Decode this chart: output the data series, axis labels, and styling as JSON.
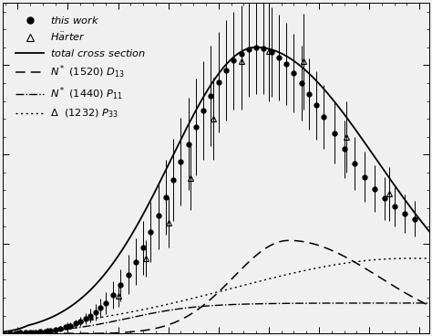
{
  "background_color": "#f0f0f0",
  "this_work_x": [
    0.285,
    0.295,
    0.305,
    0.315,
    0.325,
    0.335,
    0.345,
    0.355,
    0.365,
    0.375,
    0.385,
    0.395,
    0.405,
    0.415,
    0.425,
    0.435,
    0.445,
    0.455,
    0.465,
    0.475,
    0.49,
    0.505,
    0.52,
    0.535,
    0.55,
    0.565,
    0.58,
    0.595,
    0.61,
    0.625,
    0.64,
    0.655,
    0.67,
    0.685,
    0.7,
    0.715,
    0.73,
    0.745,
    0.76,
    0.775,
    0.79,
    0.805,
    0.82,
    0.835,
    0.85,
    0.865,
    0.88,
    0.895,
    0.91,
    0.93,
    0.95,
    0.97,
    0.99,
    1.01,
    1.03,
    1.05,
    1.07,
    1.09
  ],
  "this_work_y": [
    0.002,
    0.003,
    0.004,
    0.005,
    0.006,
    0.008,
    0.01,
    0.013,
    0.017,
    0.022,
    0.028,
    0.035,
    0.044,
    0.055,
    0.068,
    0.083,
    0.1,
    0.12,
    0.143,
    0.17,
    0.215,
    0.27,
    0.33,
    0.4,
    0.48,
    0.568,
    0.66,
    0.76,
    0.86,
    0.96,
    1.06,
    1.155,
    1.245,
    1.33,
    1.405,
    1.47,
    1.525,
    1.565,
    1.59,
    1.6,
    1.595,
    1.575,
    1.545,
    1.505,
    1.455,
    1.4,
    1.34,
    1.275,
    1.21,
    1.12,
    1.03,
    0.95,
    0.875,
    0.81,
    0.755,
    0.71,
    0.67,
    0.64
  ],
  "this_work_yerr": [
    0.002,
    0.002,
    0.002,
    0.003,
    0.003,
    0.004,
    0.005,
    0.006,
    0.008,
    0.01,
    0.012,
    0.015,
    0.018,
    0.022,
    0.027,
    0.032,
    0.038,
    0.045,
    0.053,
    0.063,
    0.075,
    0.09,
    0.11,
    0.13,
    0.15,
    0.17,
    0.19,
    0.21,
    0.23,
    0.245,
    0.26,
    0.27,
    0.275,
    0.28,
    0.28,
    0.28,
    0.275,
    0.27,
    0.265,
    0.26,
    0.255,
    0.25,
    0.24,
    0.23,
    0.22,
    0.21,
    0.2,
    0.19,
    0.18,
    0.17,
    0.16,
    0.15,
    0.14,
    0.13,
    0.12,
    0.11,
    0.105,
    0.1
  ],
  "harder_x": [
    0.285,
    0.305,
    0.33,
    0.36,
    0.4,
    0.445,
    0.5,
    0.555,
    0.6,
    0.645,
    0.69,
    0.745,
    0.8,
    0.87,
    0.955,
    1.04
  ],
  "harder_y": [
    0.002,
    0.004,
    0.008,
    0.018,
    0.043,
    0.095,
    0.21,
    0.42,
    0.62,
    0.87,
    1.2,
    1.52,
    1.58,
    1.52,
    1.1,
    0.78
  ],
  "harder_yerr": [
    0.003,
    0.004,
    0.006,
    0.01,
    0.018,
    0.033,
    0.06,
    0.1,
    0.14,
    0.18,
    0.23,
    0.27,
    0.28,
    0.27,
    0.2,
    0.15
  ],
  "xlim": [
    0.27,
    1.12
  ],
  "ylim": [
    0.0,
    1.85
  ],
  "curve_npts": 400
}
